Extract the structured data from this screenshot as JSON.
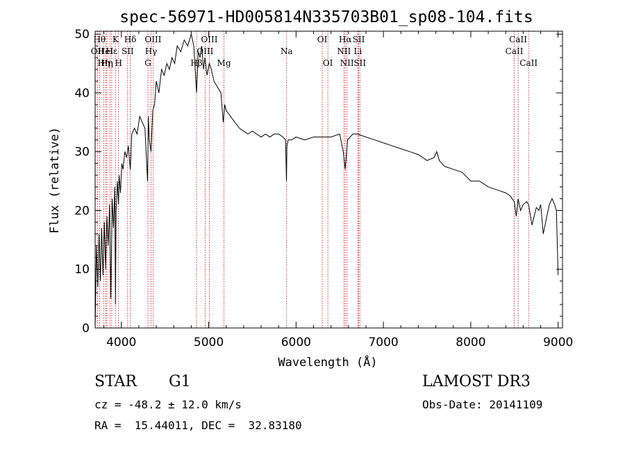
{
  "chart_data": {
    "type": "line",
    "title": "spec-56971-HD005814N335703B01_sp08-104.fits",
    "xlabel": "Wavelength (Å)",
    "ylabel": "Flux (relative)",
    "xlim": [
      3700,
      9050
    ],
    "ylim": [
      0,
      50.5
    ],
    "x_ticks": [
      4000,
      5000,
      6000,
      7000,
      8000,
      9000
    ],
    "y_ticks": [
      0,
      10,
      20,
      30,
      40,
      50
    ],
    "grid": false,
    "series": [
      {
        "name": "spectrum",
        "x": [
          3700,
          3715,
          3730,
          3745,
          3760,
          3775,
          3790,
          3805,
          3820,
          3835,
          3850,
          3865,
          3880,
          3895,
          3910,
          3925,
          3933,
          3940,
          3955,
          3968,
          3975,
          3990,
          4005,
          4020,
          4040,
          4060,
          4080,
          4102,
          4120,
          4150,
          4180,
          4210,
          4240,
          4270,
          4300,
          4310,
          4320,
          4340,
          4360,
          4380,
          4400,
          4430,
          4460,
          4490,
          4520,
          4550,
          4580,
          4610,
          4640,
          4680,
          4720,
          4760,
          4800,
          4830,
          4861,
          4880,
          4900,
          4920,
          4940,
          4957,
          4980,
          5007,
          5030,
          5060,
          5100,
          5140,
          5167,
          5183,
          5200,
          5250,
          5300,
          5350,
          5400,
          5450,
          5500,
          5550,
          5600,
          5650,
          5700,
          5750,
          5800,
          5850,
          5880,
          5890,
          5896,
          5910,
          5950,
          6000,
          6100,
          6200,
          6300,
          6400,
          6500,
          6540,
          6563,
          6590,
          6650,
          6700,
          6800,
          6900,
          7000,
          7100,
          7200,
          7300,
          7400,
          7500,
          7580,
          7610,
          7640,
          7700,
          7800,
          7900,
          8000,
          8100,
          8200,
          8300,
          8400,
          8450,
          8498,
          8520,
          8542,
          8570,
          8600,
          8640,
          8662,
          8700,
          8750,
          8780,
          8800,
          8830,
          8870,
          8900,
          8930,
          8960,
          8980,
          9000
        ],
        "y": [
          0,
          14,
          7,
          16,
          8,
          17,
          9,
          18,
          10,
          19,
          14,
          21,
          5,
          22,
          17,
          24,
          4,
          20,
          25,
          21,
          26,
          23,
          28,
          27,
          30,
          29,
          31,
          27,
          33,
          34,
          33,
          36,
          35,
          34,
          25,
          36,
          32,
          30,
          37,
          38,
          42,
          40,
          44,
          43,
          45,
          44,
          46,
          45,
          48,
          47,
          49,
          48,
          50,
          48,
          40,
          47,
          46,
          48,
          44,
          46,
          43,
          45,
          44,
          42,
          41,
          40,
          35,
          38,
          37,
          36,
          35,
          34,
          33.5,
          33,
          33.5,
          33,
          32.5,
          33,
          32.5,
          33,
          33,
          32.5,
          32,
          25,
          31,
          32,
          32,
          32.5,
          32,
          32.5,
          32.5,
          32.5,
          33,
          30,
          27,
          32,
          33,
          33,
          32.5,
          32,
          31.5,
          31,
          30.5,
          30,
          29.5,
          28.5,
          29,
          30,
          28.5,
          27.5,
          27,
          26.5,
          25,
          25,
          24,
          23.5,
          23,
          22.5,
          21.5,
          19,
          22,
          20,
          21,
          21.5,
          21,
          17.5,
          20.5,
          20,
          21,
          16,
          19,
          21,
          22,
          21,
          20,
          9
        ]
      }
    ],
    "lines": [
      {
        "w": 3727,
        "label": "OII",
        "row": 2
      },
      {
        "w": 3750,
        "label": "Hθ",
        "row": 1
      },
      {
        "w": 3798,
        "label": "Hη",
        "row": 3
      },
      {
        "w": 3820,
        "label": "HeI",
        "row": 2
      },
      {
        "w": 3835,
        "label": "Hη",
        "row": 3
      },
      {
        "w": 3869,
        "label": "",
        "row": 0
      },
      {
        "w": 3889,
        "label": "Hε",
        "row": 2
      },
      {
        "w": 3933,
        "label": "K",
        "row": 1
      },
      {
        "w": 3968,
        "label": "H",
        "row": 3
      },
      {
        "w": 4072,
        "label": "SII",
        "row": 2
      },
      {
        "w": 4102,
        "label": "Hδ",
        "row": 1
      },
      {
        "w": 4304,
        "label": "G",
        "row": 3
      },
      {
        "w": 4340,
        "label": "Hγ",
        "row": 2
      },
      {
        "w": 4363,
        "label": "OIII",
        "row": 1
      },
      {
        "w": 4861,
        "label": "Hβ",
        "row": 3
      },
      {
        "w": 4959,
        "label": "OIII",
        "row": 2
      },
      {
        "w": 5007,
        "label": "OIII",
        "row": 1
      },
      {
        "w": 5175,
        "label": "Mg",
        "row": 3
      },
      {
        "w": 5892,
        "label": "Na",
        "row": 2
      },
      {
        "w": 6300,
        "label": "OI",
        "row": 1
      },
      {
        "w": 6364,
        "label": "OI",
        "row": 3
      },
      {
        "w": 6548,
        "label": "NII",
        "row": 2
      },
      {
        "w": 6563,
        "label": "Hα",
        "row": 1
      },
      {
        "w": 6583,
        "label": "NII",
        "row": 3
      },
      {
        "w": 6707,
        "label": "Li",
        "row": 2
      },
      {
        "w": 6717,
        "label": "SII",
        "row": 1
      },
      {
        "w": 6731,
        "label": "SII",
        "row": 3
      },
      {
        "w": 8498,
        "label": "CaII",
        "row": 2
      },
      {
        "w": 8542,
        "label": "CaII",
        "row": 1
      },
      {
        "w": 8662,
        "label": "CaII",
        "row": 3
      }
    ]
  },
  "info": {
    "object_class": "STAR",
    "subclass": "G1",
    "velocity": "cz = -48.2 ± 12.0 km/s",
    "coords": "RA =  15.44011, DEC =  32.83180",
    "survey": "LAMOST DR3",
    "obs_date": "Obs-Date: 20141109"
  }
}
